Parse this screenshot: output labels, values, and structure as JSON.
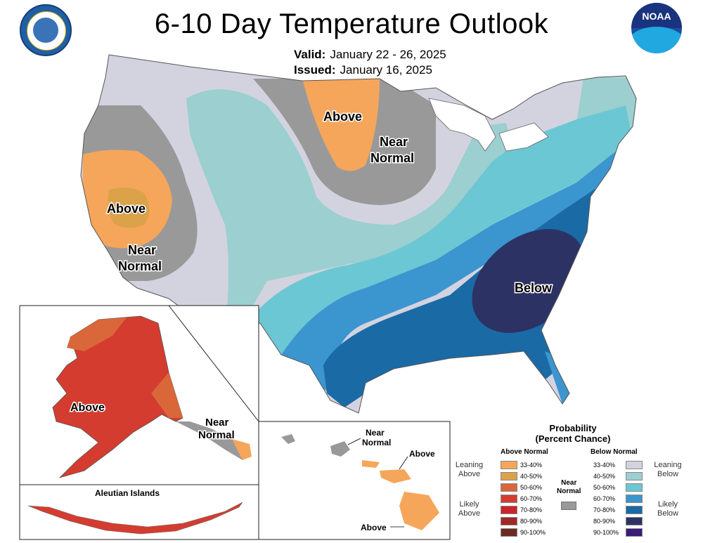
{
  "header": {
    "title": "6-10 Day Temperature Outlook",
    "valid_label": "Valid:",
    "valid_dates": "January 22 - 26, 2025",
    "issued_label": "Issued:",
    "issued_date": "January 16, 2025",
    "logo_noaa": "NOAA"
  },
  "map_labels": {
    "above_west": "Above",
    "above_north": "Above",
    "near_normal_west_1": "Near",
    "near_normal_west_2": "Normal",
    "near_normal_north_1": "Near",
    "near_normal_north_2": "Normal",
    "below_southeast": "Below",
    "alaska_above": "Above",
    "alaska_near_1": "Near",
    "alaska_near_2": "Normal",
    "aleutian_title": "Aleutian Islands",
    "hawaii_near_1": "Near",
    "hawaii_near_2": "Normal",
    "hawaii_above_1": "Above",
    "hawaii_above_2": "Above"
  },
  "legend": {
    "title_1": "Probability",
    "title_2": "(Percent Chance)",
    "above_normal_head": "Above Normal",
    "below_normal_head": "Below Normal",
    "leaning_above_1": "Leaning",
    "leaning_above_2": "Above",
    "likely_above_1": "Likely",
    "likely_above_2": "Above",
    "leaning_below_1": "Leaning",
    "leaning_below_2": "Below",
    "likely_below_1": "Likely",
    "likely_below_2": "Below",
    "near_normal_1": "Near",
    "near_normal_2": "Normal",
    "above_ranges": [
      "33-40%",
      "40-50%",
      "50-60%",
      "60-70%",
      "70-80%",
      "80-90%",
      "90-100%"
    ],
    "below_ranges": [
      "33-40%",
      "40-50%",
      "50-60%",
      "60-70%",
      "70-80%",
      "80-90%",
      "90-100%"
    ],
    "above_colors": [
      "#f5a65b",
      "#dba24a",
      "#d9673a",
      "#d43c30",
      "#c8262b",
      "#9e2a28",
      "#6b2a22"
    ],
    "below_colors": [
      "#d3d3e0",
      "#9ccfcf",
      "#6cc7d4",
      "#3b95cf",
      "#1a6aa6",
      "#2d3265",
      "#3a1a7a"
    ],
    "near_normal_color": "#999999"
  },
  "colors": {
    "leaning_below": "#d3d3e0",
    "below_40_50": "#9ccfcf",
    "below_50_60": "#6cc7d4",
    "below_60_70": "#3b95cf",
    "below_70_80": "#1a6aa6",
    "below_80_90": "#2d3265",
    "near_normal": "#999999",
    "above_33_40": "#f5a65b",
    "above_40_50": "#dba24a",
    "above_50_60": "#d9673a",
    "above_60_70": "#d43c30"
  }
}
